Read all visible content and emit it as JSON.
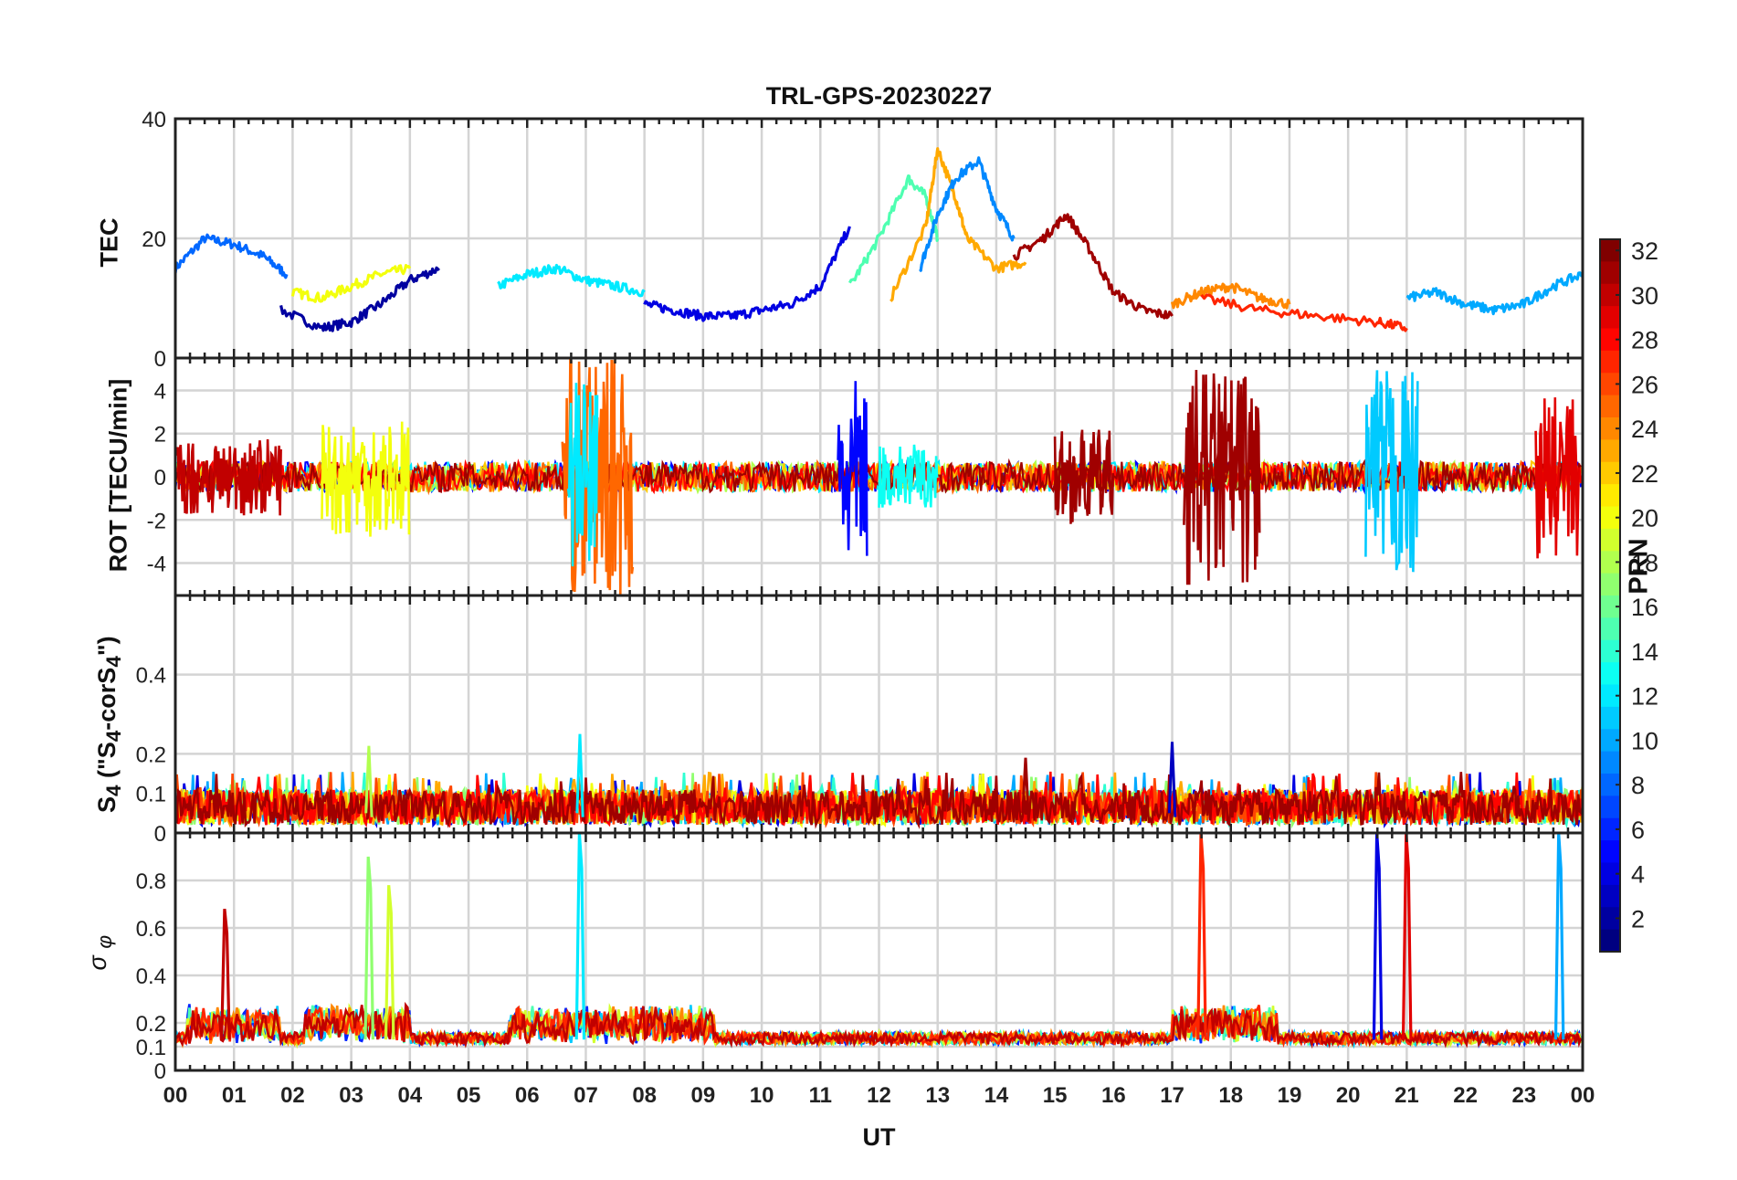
{
  "chart_data": {
    "type": "line",
    "title": "TRL-GPS-20230227",
    "xlabel": "UT",
    "x_ticks": [
      "00",
      "01",
      "02",
      "03",
      "04",
      "05",
      "06",
      "07",
      "08",
      "09",
      "10",
      "11",
      "12",
      "13",
      "14",
      "15",
      "16",
      "17",
      "18",
      "19",
      "20",
      "21",
      "22",
      "23",
      "00"
    ],
    "xlim": [
      0,
      24
    ],
    "grid": true,
    "colorbar": {
      "label": "PRN",
      "range": [
        1,
        32
      ],
      "ticks": [
        "2",
        "4",
        "6",
        "8",
        "10",
        "12",
        "14",
        "16",
        "18",
        "20",
        "22",
        "24",
        "26",
        "28",
        "30",
        "32"
      ],
      "colormap": "jet"
    },
    "panels": [
      {
        "name": "tec",
        "ylabel": "TEC",
        "ylim": [
          0,
          40
        ],
        "y_ticks": [
          "0",
          "20",
          "40"
        ],
        "series": [
          {
            "prn": 8,
            "x": [
              0,
              0.5,
              1,
              1.5,
              1.9
            ],
            "y": [
              15,
              20,
              19,
              17,
              14
            ]
          },
          {
            "prn": 2,
            "x": [
              1.8,
              2.5,
              3,
              3.5,
              4,
              4.5
            ],
            "y": [
              8,
              5,
              6,
              9,
              13,
              15
            ]
          },
          {
            "prn": 20,
            "x": [
              2,
              2.5,
              3,
              3.5,
              4
            ],
            "y": [
              11,
              10,
              12,
              14,
              15
            ]
          },
          {
            "prn": 12,
            "x": [
              5.5,
              6,
              6.5,
              7,
              7.5,
              8
            ],
            "y": [
              12,
              14,
              15,
              13,
              12,
              11
            ]
          },
          {
            "prn": 4,
            "x": [
              8,
              8.5,
              9,
              9.5,
              10,
              10.5,
              11,
              11.5
            ],
            "y": [
              9,
              8,
              7,
              7,
              8,
              9,
              12,
              22
            ]
          },
          {
            "prn": 15,
            "x": [
              11.5,
              12,
              12.5,
              12.8,
              13
            ],
            "y": [
              12,
              20,
              30,
              27,
              20
            ]
          },
          {
            "prn": 23,
            "x": [
              12.2,
              12.8,
              13,
              13.3,
              13.5,
              14,
              14.5
            ],
            "y": [
              10,
              22,
              35,
              27,
              20,
              15,
              16
            ]
          },
          {
            "prn": 9,
            "x": [
              12.7,
              13,
              13.3,
              13.7,
              14,
              14.3
            ],
            "y": [
              15,
              24,
              30,
              33,
              25,
              20
            ]
          },
          {
            "prn": 31,
            "x": [
              14.3,
              14.8,
              15.2,
              15.6,
              16,
              16.5,
              17
            ],
            "y": [
              17,
              20,
              24,
              18,
              11,
              8,
              7
            ]
          },
          {
            "prn": 24,
            "x": [
              17,
              17.5,
              18,
              18.5,
              19
            ],
            "y": [
              9,
              11,
              12,
              10,
              9
            ]
          },
          {
            "prn": 27,
            "x": [
              17.5,
              18.5,
              19.5,
              20.5,
              21
            ],
            "y": [
              10,
              8,
              7,
              6,
              5
            ]
          },
          {
            "prn": 10,
            "x": [
              21,
              21.5,
              22,
              22.5,
              23,
              23.5,
              24
            ],
            "y": [
              10,
              11,
              9,
              8,
              9,
              12,
              14
            ]
          }
        ]
      },
      {
        "name": "rot",
        "ylabel": "ROT [TECU/min]",
        "ylim": [
          -5.5,
          5.5
        ],
        "y_ticks": [
          "-4",
          "-2",
          "0",
          "2",
          "4"
        ],
        "bursts": [
          {
            "prn": 30,
            "t0": 0,
            "t1": 1.8,
            "amp": 1.8
          },
          {
            "prn": 20,
            "t0": 2.5,
            "t1": 4,
            "amp": 2.8
          },
          {
            "prn": 25,
            "t0": 6.6,
            "t1": 7.8,
            "amp": 5.5
          },
          {
            "prn": 12,
            "t0": 6.7,
            "t1": 7.2,
            "amp": 4.5
          },
          {
            "prn": 5,
            "t0": 11.3,
            "t1": 11.8,
            "amp": 4.5
          },
          {
            "prn": 13,
            "t0": 12,
            "t1": 13,
            "amp": 1.5
          },
          {
            "prn": 31,
            "t0": 15,
            "t1": 16,
            "amp": 2.2
          },
          {
            "prn": 31,
            "t0": 17.2,
            "t1": 18.5,
            "amp": 5.0
          },
          {
            "prn": 11,
            "t0": 20.3,
            "t1": 21.2,
            "amp": 5.0
          },
          {
            "prn": 29,
            "t0": 23.2,
            "t1": 23.95,
            "amp": 3.8
          }
        ]
      },
      {
        "name": "s4",
        "ylabel": "S4 (\"S4-corS4\")",
        "ylim": [
          0,
          0.6
        ],
        "y_ticks": [
          "0",
          "0.1",
          "0.2",
          "0.4"
        ],
        "peaks": [
          {
            "prn": 18,
            "t": 3.3,
            "value": 0.22
          },
          {
            "prn": 12,
            "t": 6.9,
            "value": 0.25
          },
          {
            "prn": 31,
            "t": 14.5,
            "value": 0.19
          },
          {
            "prn": 3,
            "t": 17,
            "value": 0.23
          }
        ]
      },
      {
        "name": "sigma_phi",
        "ylabel": "σ φ",
        "ylim": [
          0,
          1.0
        ],
        "y_ticks": [
          "0",
          "0.1",
          "0.2",
          "0.4",
          "0.6",
          "0.8"
        ],
        "peaks": [
          {
            "prn": 30,
            "t": 0.85,
            "value": 0.68
          },
          {
            "prn": 17,
            "t": 3.3,
            "value": 0.9
          },
          {
            "prn": 19,
            "t": 3.65,
            "value": 0.78
          },
          {
            "prn": 12,
            "t": 6.9,
            "value": 1.0
          },
          {
            "prn": 27,
            "t": 17.5,
            "value": 1.0
          },
          {
            "prn": 4,
            "t": 20.5,
            "value": 1.0
          },
          {
            "prn": 29,
            "t": 21,
            "value": 1.0
          },
          {
            "prn": 10,
            "t": 23.6,
            "value": 1.0
          }
        ]
      }
    ]
  }
}
